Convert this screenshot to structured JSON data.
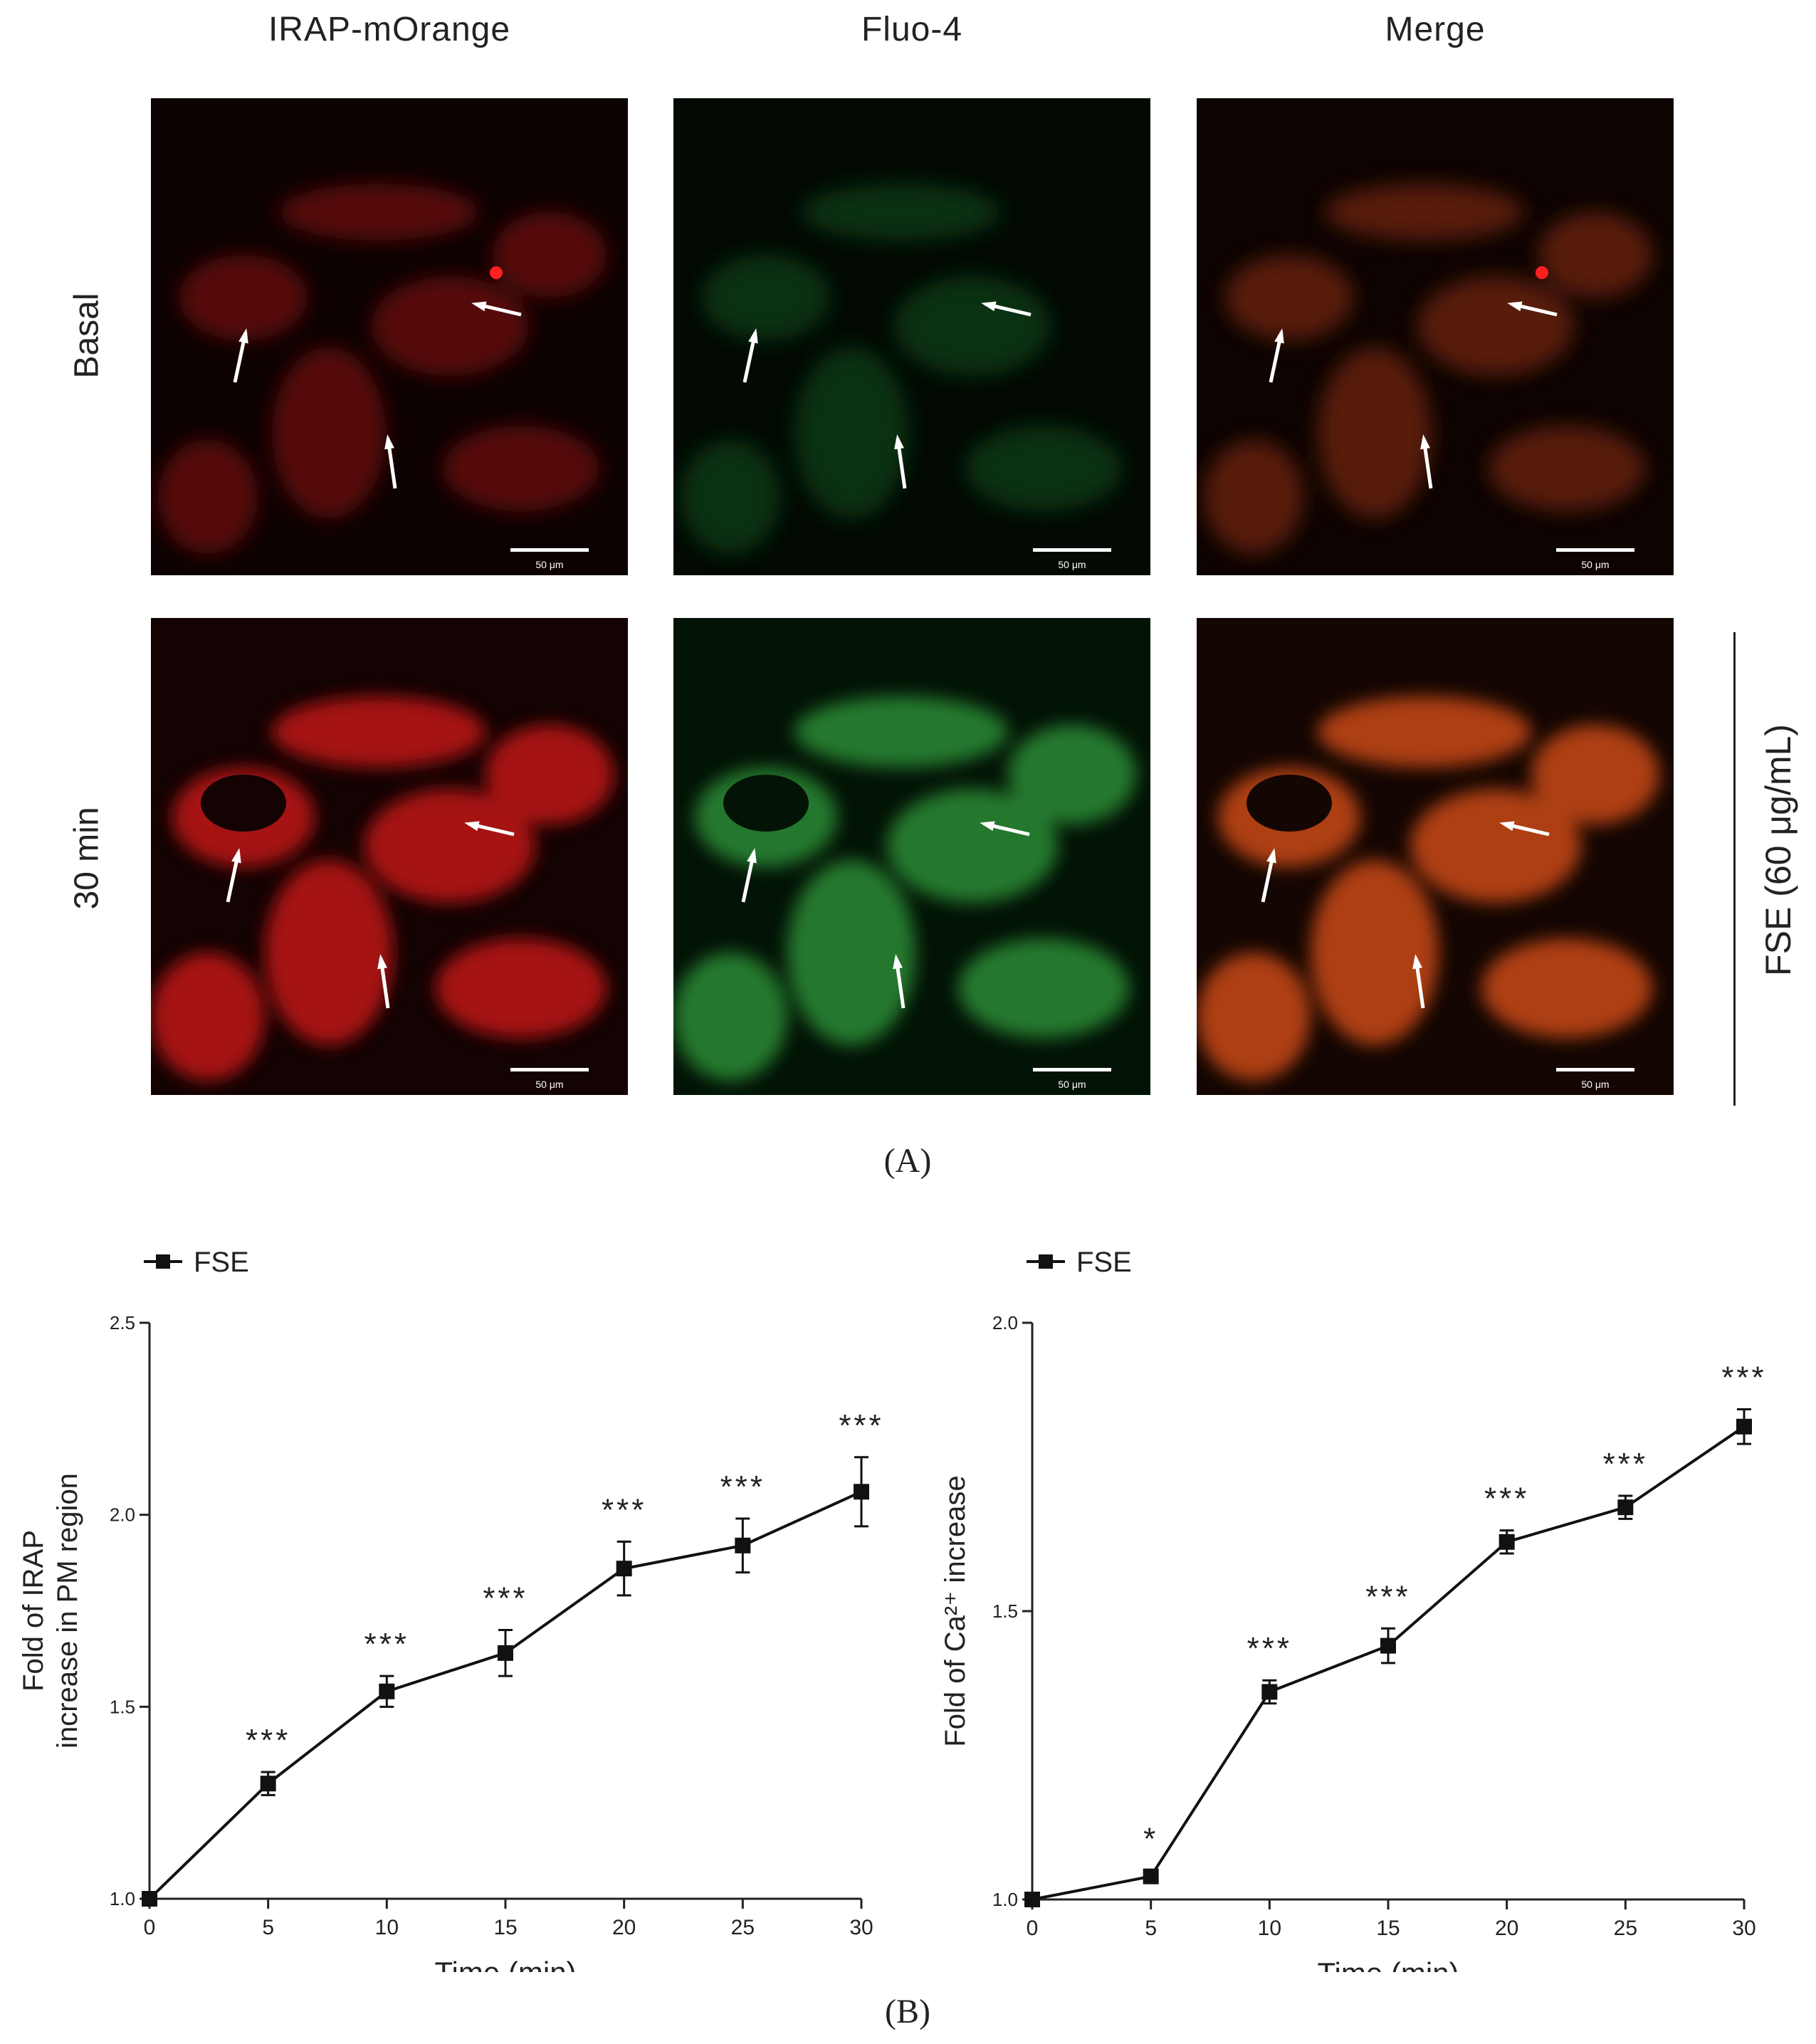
{
  "figure": {
    "columns": [
      "IRAP-mOrange",
      "Fluo-4",
      "Merge"
    ],
    "rows": [
      "Basal",
      "30 min"
    ],
    "scale_bar": "50 μm",
    "treatment_label": "FSE (60 μg/mL)",
    "panel_a_caption": "(A)",
    "panel_b_caption": "(B)"
  },
  "chart_data": [
    {
      "type": "line",
      "title": "",
      "xlabel": "Time (min)",
      "ylabel_line1": "Fold of IRAP",
      "ylabel_line2": "increase in PM region",
      "xlim": [
        0,
        30
      ],
      "ylim": [
        1.0,
        2.5
      ],
      "xticks": [
        0,
        5,
        10,
        15,
        20,
        25,
        30
      ],
      "yticks": [
        "1.0",
        "1.5",
        "2.0",
        "2.5"
      ],
      "legend": "top-left",
      "grid": false,
      "series": [
        {
          "name": "FSE",
          "x": [
            0,
            5,
            10,
            15,
            20,
            25,
            30
          ],
          "y": [
            1.0,
            1.3,
            1.54,
            1.64,
            1.86,
            1.92,
            2.06
          ],
          "error": [
            0,
            0.03,
            0.04,
            0.06,
            0.07,
            0.07,
            0.09
          ],
          "significance": [
            "",
            "***",
            "***",
            "***",
            "***",
            "***",
            "***"
          ]
        }
      ]
    },
    {
      "type": "line",
      "title": "",
      "xlabel": "Time (min)",
      "ylabel": "Fold of Ca²⁺ increase",
      "xlim": [
        0,
        30
      ],
      "ylim": [
        1.0,
        2.0
      ],
      "xticks": [
        0,
        5,
        10,
        15,
        20,
        25,
        30
      ],
      "yticks": [
        "1.0",
        "1.5",
        "2.0"
      ],
      "legend": "top-left",
      "grid": false,
      "series": [
        {
          "name": "FSE",
          "x": [
            0,
            5,
            10,
            15,
            20,
            25,
            30
          ],
          "y": [
            1.0,
            1.04,
            1.36,
            1.44,
            1.62,
            1.68,
            1.82
          ],
          "error": [
            0,
            0.01,
            0.02,
            0.03,
            0.02,
            0.02,
            0.03
          ],
          "significance": [
            "",
            "*",
            "***",
            "***",
            "***",
            "***",
            "***"
          ]
        }
      ]
    }
  ]
}
